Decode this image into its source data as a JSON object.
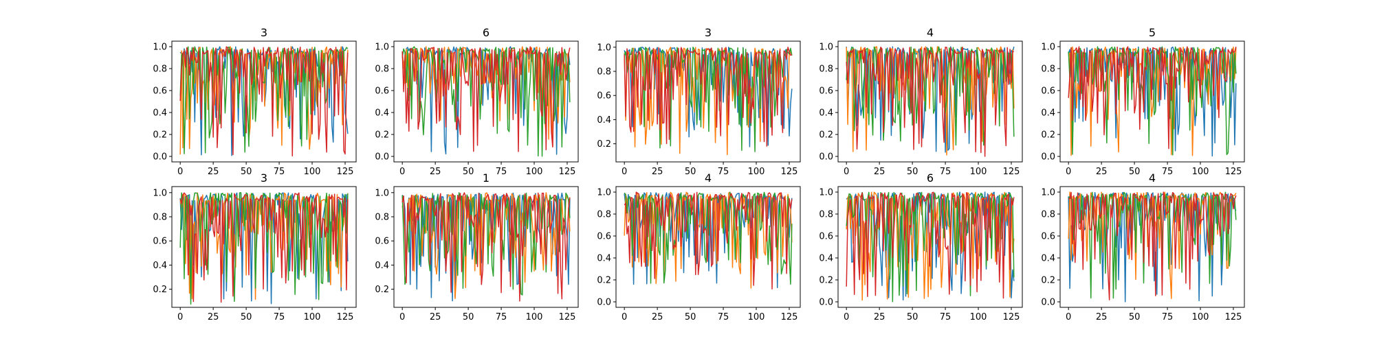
{
  "figure": {
    "series_colors": [
      "#1f77b4",
      "#ff7f0e",
      "#2ca02c",
      "#d62728"
    ],
    "x_ticks": [
      0,
      25,
      50,
      75,
      100,
      125
    ]
  },
  "chart_data": [
    {
      "type": "line",
      "title": "3",
      "xlim": [
        -6.35,
        133.35
      ],
      "ylim": [
        -0.05,
        1.05
      ],
      "yticks": [
        0.0,
        0.2,
        0.4,
        0.6,
        0.8,
        1.0
      ],
      "n_points": 128,
      "seed": 11,
      "min_dip": 0.0
    },
    {
      "type": "line",
      "title": "6",
      "xlim": [
        -6.35,
        133.35
      ],
      "ylim": [
        -0.05,
        1.05
      ],
      "yticks": [
        0.0,
        0.2,
        0.4,
        0.6,
        0.8,
        1.0
      ],
      "n_points": 128,
      "seed": 23,
      "min_dip": 0.0
    },
    {
      "type": "line",
      "title": "3",
      "xlim": [
        -6.35,
        133.35
      ],
      "ylim": [
        0.05,
        1.05
      ],
      "yticks": [
        0.2,
        0.4,
        0.6,
        0.8,
        1.0
      ],
      "n_points": 128,
      "seed": 37,
      "min_dip": 0.1
    },
    {
      "type": "line",
      "title": "4",
      "xlim": [
        -6.35,
        133.35
      ],
      "ylim": [
        -0.05,
        1.05
      ],
      "yticks": [
        0.0,
        0.2,
        0.4,
        0.6,
        0.8,
        1.0
      ],
      "n_points": 128,
      "seed": 41,
      "min_dip": 0.0
    },
    {
      "type": "line",
      "title": "5",
      "xlim": [
        -6.35,
        133.35
      ],
      "ylim": [
        -0.05,
        1.05
      ],
      "yticks": [
        0.0,
        0.2,
        0.4,
        0.6,
        0.8,
        1.0
      ],
      "n_points": 128,
      "seed": 53,
      "min_dip": 0.0
    },
    {
      "type": "line",
      "title": "3",
      "xlim": [
        -6.35,
        133.35
      ],
      "ylim": [
        0.05,
        1.05
      ],
      "yticks": [
        0.2,
        0.4,
        0.6,
        0.8,
        1.0
      ],
      "n_points": 128,
      "seed": 67,
      "min_dip": 0.07
    },
    {
      "type": "line",
      "title": "1",
      "xlim": [
        -6.35,
        133.35
      ],
      "ylim": [
        0.05,
        1.05
      ],
      "yticks": [
        0.2,
        0.4,
        0.6,
        0.8,
        1.0
      ],
      "n_points": 128,
      "seed": 71,
      "min_dip": 0.1
    },
    {
      "type": "line",
      "title": "4",
      "xlim": [
        -6.35,
        133.35
      ],
      "ylim": [
        -0.05,
        1.05
      ],
      "yticks": [
        0.0,
        0.2,
        0.4,
        0.6,
        0.8,
        1.0
      ],
      "n_points": 128,
      "seed": 83,
      "min_dip": 0.1
    },
    {
      "type": "line",
      "title": "6",
      "xlim": [
        -6.35,
        133.35
      ],
      "ylim": [
        -0.05,
        1.05
      ],
      "yticks": [
        0.0,
        0.2,
        0.4,
        0.6,
        0.8,
        1.0
      ],
      "n_points": 128,
      "seed": 97,
      "min_dip": 0.0
    },
    {
      "type": "line",
      "title": "4",
      "xlim": [
        -6.35,
        133.35
      ],
      "ylim": [
        -0.05,
        1.05
      ],
      "yticks": [
        0.0,
        0.2,
        0.4,
        0.6,
        0.8,
        1.0
      ],
      "n_points": 128,
      "seed": 101,
      "min_dip": 0.0
    }
  ]
}
